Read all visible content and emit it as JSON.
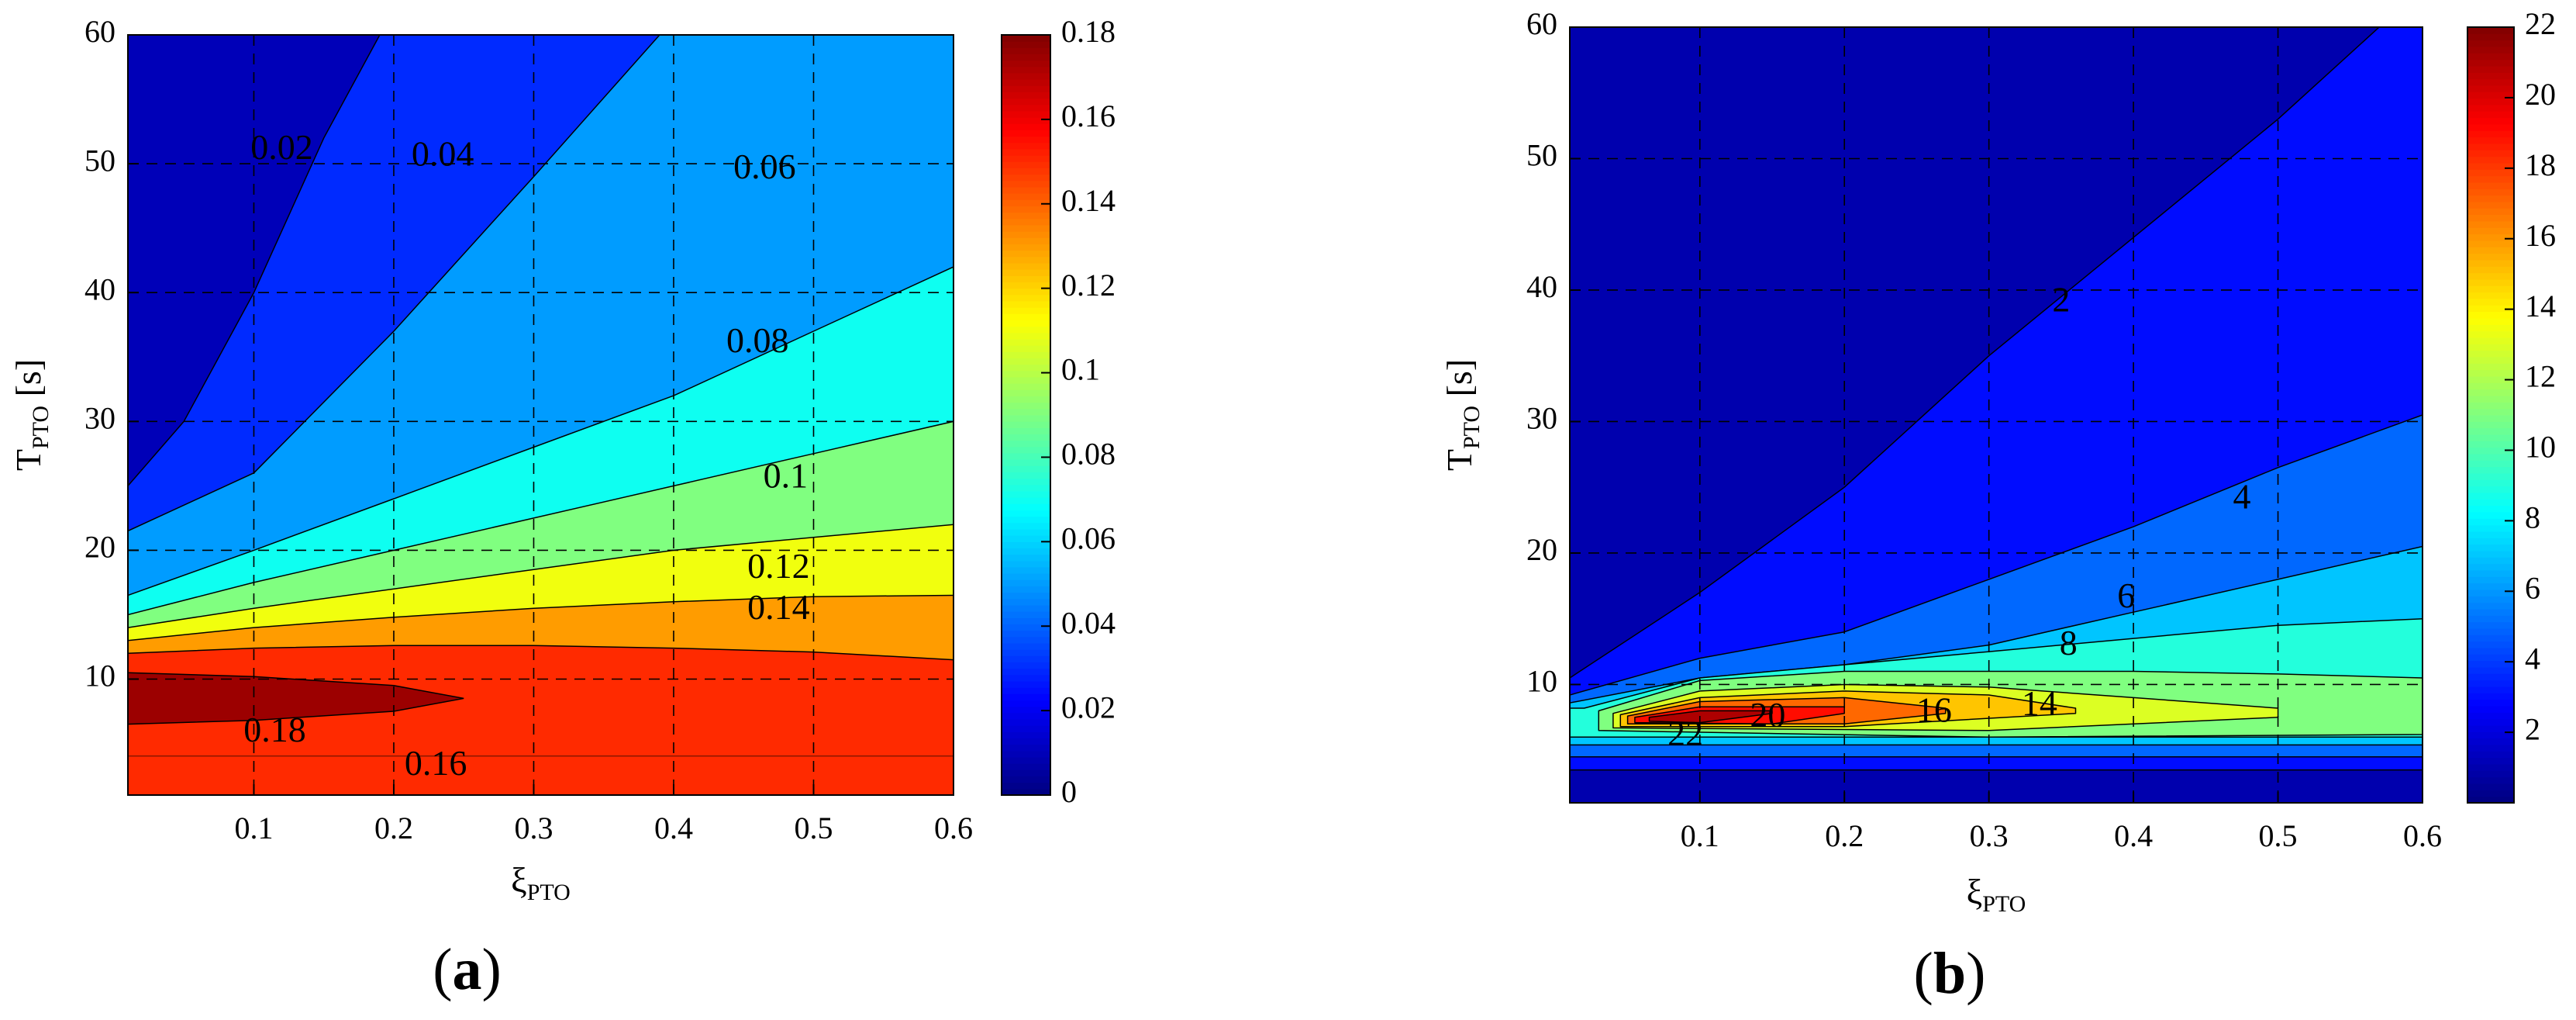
{
  "chart_data": [
    {
      "type": "contour",
      "panel_label": "a",
      "xlabel": "ξ",
      "xlabel_sub": "PTO",
      "ylabel": "T",
      "ylabel_sub": "PTO",
      "ylabel_unit": " [s]",
      "xlim": [
        0.01,
        0.6
      ],
      "ylim": [
        1,
        60
      ],
      "xticks": [
        0.1,
        0.2,
        0.3,
        0.4,
        0.5,
        0.6
      ],
      "xtick_labels": [
        "0.1",
        "0.2",
        "0.3",
        "0.4",
        "0.5",
        "0.6"
      ],
      "yticks": [
        10,
        20,
        30,
        40,
        50,
        60
      ],
      "ytick_labels": [
        "10",
        "20",
        "30",
        "40",
        "50",
        "60"
      ],
      "grid": true,
      "colorbar": {
        "min": 0,
        "max": 0.18,
        "ticks": [
          0,
          0.02,
          0.04,
          0.06,
          0.08,
          0.1,
          0.12,
          0.14,
          0.16,
          0.18
        ],
        "tick_labels": [
          "0",
          "0.02",
          "0.04",
          "0.06",
          "0.08",
          "0.1",
          "0.12",
          "0.14",
          "0.16",
          "0.18"
        ]
      },
      "bands_lower_boundary": [
        {
          "level": 0.02,
          "points": [
            [
              0.01,
              25
            ],
            [
              0.05,
              30
            ],
            [
              0.1,
              40
            ],
            [
              0.15,
              52
            ],
            [
              0.19,
              60
            ]
          ]
        },
        {
          "level": 0.04,
          "points": [
            [
              0.01,
              21.5
            ],
            [
              0.1,
              26
            ],
            [
              0.2,
              37
            ],
            [
              0.3,
              49
            ],
            [
              0.39,
              60
            ]
          ]
        },
        {
          "level": 0.06,
          "points": [
            [
              0.01,
              16.5
            ],
            [
              0.1,
              20
            ],
            [
              0.2,
              24
            ],
            [
              0.3,
              28
            ],
            [
              0.4,
              32
            ],
            [
              0.5,
              37
            ],
            [
              0.6,
              42
            ]
          ]
        },
        {
          "level": 0.08,
          "points": [
            [
              0.01,
              15
            ],
            [
              0.1,
              17.5
            ],
            [
              0.2,
              20
            ],
            [
              0.3,
              22.5
            ],
            [
              0.4,
              25
            ],
            [
              0.5,
              27.5
            ],
            [
              0.6,
              30
            ]
          ]
        },
        {
          "level": 0.1,
          "points": [
            [
              0.01,
              14
            ],
            [
              0.1,
              15.5
            ],
            [
              0.2,
              17
            ],
            [
              0.3,
              18.5
            ],
            [
              0.4,
              20
            ],
            [
              0.5,
              21
            ],
            [
              0.6,
              22
            ]
          ]
        },
        {
          "level": 0.12,
          "points": [
            [
              0.01,
              13
            ],
            [
              0.1,
              14
            ],
            [
              0.2,
              14.8
            ],
            [
              0.3,
              15.5
            ],
            [
              0.4,
              16
            ],
            [
              0.5,
              16.4
            ],
            [
              0.6,
              16.5
            ]
          ]
        },
        {
          "level": 0.14,
          "points": [
            [
              0.01,
              12
            ],
            [
              0.1,
              12.4
            ],
            [
              0.2,
              12.6
            ],
            [
              0.3,
              12.6
            ],
            [
              0.4,
              12.4
            ],
            [
              0.5,
              12.1
            ],
            [
              0.6,
              11.5
            ]
          ]
        },
        {
          "level": 0.16,
          "points": [
            [
              0.01,
              4
            ],
            [
              0.6,
              4
            ]
          ]
        }
      ],
      "peak_region": {
        "level": 0.18,
        "points": [
          [
            0.01,
            10.5
          ],
          [
            0.1,
            10.2
          ],
          [
            0.2,
            9.5
          ],
          [
            0.25,
            8.5
          ],
          [
            0.2,
            7.5
          ],
          [
            0.1,
            6.8
          ],
          [
            0.01,
            6.5
          ]
        ]
      },
      "contour_labels": [
        {
          "text": "0.02",
          "x": 0.12,
          "y": 51
        },
        {
          "text": "0.04",
          "x": 0.235,
          "y": 50.5
        },
        {
          "text": "0.06",
          "x": 0.465,
          "y": 49.5
        },
        {
          "text": "0.08",
          "x": 0.46,
          "y": 36
        },
        {
          "text": "0.1",
          "x": 0.48,
          "y": 25.5
        },
        {
          "text": "0.12",
          "x": 0.475,
          "y": 18.5
        },
        {
          "text": "0.14",
          "x": 0.475,
          "y": 15.3
        },
        {
          "text": "0.18",
          "x": 0.115,
          "y": 5.8
        },
        {
          "text": "0.16",
          "x": 0.23,
          "y": 3.2
        }
      ]
    },
    {
      "type": "contour",
      "panel_label": "b",
      "xlabel": "ξ",
      "xlabel_sub": "PTO",
      "ylabel": "T",
      "ylabel_sub": "PTO",
      "ylabel_unit": " [s]",
      "xlim": [
        0.01,
        0.6
      ],
      "ylim": [
        1,
        60
      ],
      "xticks": [
        0.1,
        0.2,
        0.3,
        0.4,
        0.5,
        0.6
      ],
      "xtick_labels": [
        "0.1",
        "0.2",
        "0.3",
        "0.4",
        "0.5",
        "0.6"
      ],
      "yticks": [
        10,
        20,
        30,
        40,
        50,
        60
      ],
      "ytick_labels": [
        "10",
        "20",
        "30",
        "40",
        "50",
        "60"
      ],
      "grid": true,
      "colorbar": {
        "min": 0,
        "max": 22,
        "ticks": [
          2,
          4,
          6,
          8,
          10,
          12,
          14,
          16,
          18,
          20,
          22
        ],
        "tick_labels": [
          "2",
          "4",
          "6",
          "8",
          "10",
          "12",
          "14",
          "16",
          "18",
          "20",
          "22"
        ]
      },
      "bands_nested": [
        {
          "level": 2,
          "upper": [
            [
              0.01,
              10.5
            ],
            [
              0.1,
              17
            ],
            [
              0.2,
              25
            ],
            [
              0.3,
              35
            ],
            [
              0.4,
              44
            ],
            [
              0.5,
              53
            ],
            [
              0.57,
              60
            ]
          ],
          "lower": [
            [
              0.01,
              3.5
            ],
            [
              0.6,
              3.5
            ]
          ]
        },
        {
          "level": 4,
          "upper": [
            [
              0.01,
              9.2
            ],
            [
              0.1,
              12
            ],
            [
              0.2,
              14
            ],
            [
              0.3,
              18
            ],
            [
              0.4,
              22
            ],
            [
              0.5,
              26.5
            ],
            [
              0.6,
              30.5
            ]
          ],
          "lower": [
            [
              0.01,
              4.5
            ],
            [
              0.6,
              4.5
            ]
          ]
        },
        {
          "level": 6,
          "upper": [
            [
              0.01,
              8.6
            ],
            [
              0.1,
              10.5
            ],
            [
              0.2,
              11.5
            ],
            [
              0.3,
              13
            ],
            [
              0.4,
              15.5
            ],
            [
              0.5,
              18
            ],
            [
              0.6,
              20.5
            ]
          ],
          "lower": [
            [
              0.01,
              5.4
            ],
            [
              0.6,
              5.4
            ]
          ]
        },
        {
          "level": 8,
          "upper": [
            [
              0.02,
              8.2
            ],
            [
              0.1,
              10.5
            ],
            [
              0.2,
              11.5
            ],
            [
              0.3,
              12.5
            ],
            [
              0.4,
              13.5
            ],
            [
              0.5,
              14.5
            ],
            [
              0.6,
              15
            ]
          ],
          "lower": [
            [
              0.02,
              6
            ],
            [
              0.6,
              6
            ]
          ]
        },
        {
          "level": 10,
          "upper": [
            [
              0.03,
              8
            ],
            [
              0.1,
              10.3
            ],
            [
              0.2,
              11
            ],
            [
              0.3,
              11
            ],
            [
              0.4,
              11
            ],
            [
              0.5,
              10.8
            ],
            [
              0.6,
              10.5
            ]
          ],
          "lower": [
            [
              0.03,
              6.5
            ],
            [
              0.3,
              6
            ],
            [
              0.6,
              6.2
            ]
          ]
        },
        {
          "level": 12,
          "upper": [
            [
              0.04,
              7.8
            ],
            [
              0.1,
              9.5
            ],
            [
              0.2,
              10
            ],
            [
              0.3,
              9.8
            ],
            [
              0.4,
              9
            ],
            [
              0.5,
              8.2
            ]
          ],
          "lower": [
            [
              0.04,
              6.7
            ],
            [
              0.3,
              6.5
            ],
            [
              0.5,
              7.5
            ]
          ]
        },
        {
          "level": 14,
          "upper": [
            [
              0.045,
              7.7
            ],
            [
              0.1,
              9
            ],
            [
              0.2,
              9.5
            ],
            [
              0.3,
              9.2
            ],
            [
              0.36,
              8.2
            ]
          ],
          "lower": [
            [
              0.045,
              6.8
            ],
            [
              0.2,
              6.8
            ],
            [
              0.36,
              7.8
            ]
          ]
        },
        {
          "level": 16,
          "upper": [
            [
              0.05,
              7.6
            ],
            [
              0.1,
              8.7
            ],
            [
              0.2,
              9
            ],
            [
              0.27,
              8.2
            ]
          ],
          "lower": [
            [
              0.05,
              7
            ],
            [
              0.2,
              7
            ],
            [
              0.27,
              7.8
            ]
          ]
        },
        {
          "level": 18,
          "upper": [
            [
              0.055,
              7.5
            ],
            [
              0.1,
              8.3
            ],
            [
              0.2,
              8.3
            ]
          ],
          "lower": [
            [
              0.055,
              7.1
            ],
            [
              0.15,
              7
            ],
            [
              0.2,
              7.8
            ]
          ]
        },
        {
          "level": 20,
          "upper": [
            [
              0.065,
              7.5
            ],
            [
              0.1,
              8
            ],
            [
              0.15,
              8
            ]
          ],
          "lower": [
            [
              0.065,
              7.2
            ],
            [
              0.1,
              7.1
            ],
            [
              0.15,
              7.8
            ]
          ]
        }
      ],
      "contour_labels": [
        {
          "text": "2",
          "x": 0.35,
          "y": 39
        },
        {
          "text": "4",
          "x": 0.475,
          "y": 24
        },
        {
          "text": "6",
          "x": 0.395,
          "y": 16.5
        },
        {
          "text": "8",
          "x": 0.355,
          "y": 12.9
        },
        {
          "text": "16",
          "x": 0.262,
          "y": 7.8
        },
        {
          "text": "14",
          "x": 0.335,
          "y": 8.3
        },
        {
          "text": "20",
          "x": 0.147,
          "y": 7.4
        },
        {
          "text": "22",
          "x": 0.09,
          "y": 6.0
        }
      ]
    }
  ]
}
